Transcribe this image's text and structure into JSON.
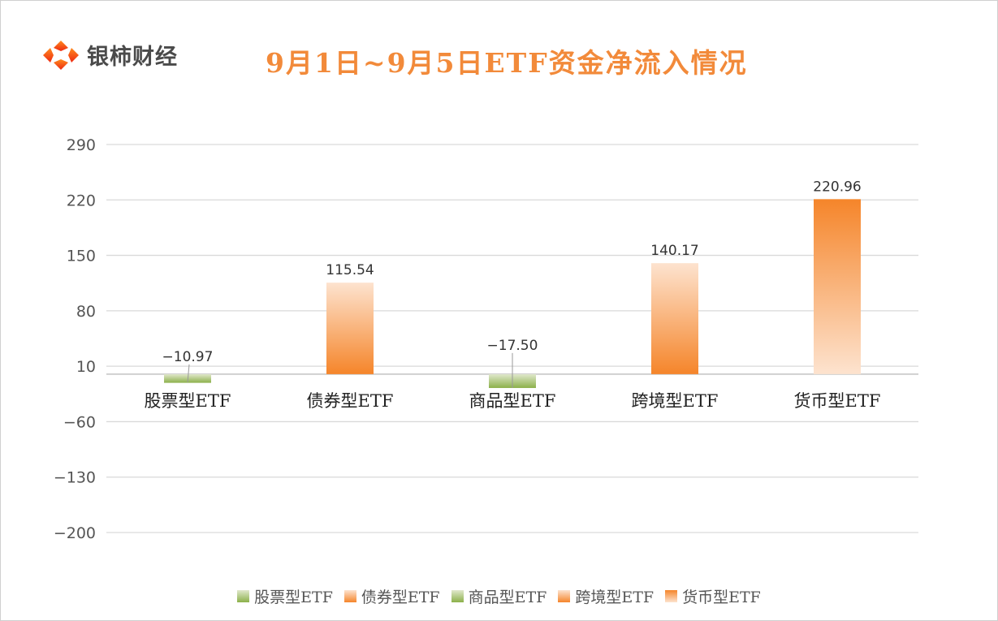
{
  "brand": {
    "name": "银柿财经"
  },
  "chart_data": {
    "type": "bar",
    "title": "9月1日~9月5日ETF资金净流入情况",
    "categories": [
      "股票型ETF",
      "债券型ETF",
      "商品型ETF",
      "跨境型ETF",
      "货币型ETF"
    ],
    "values": [
      -10.97,
      115.54,
      -17.5,
      140.17,
      220.96
    ],
    "labels": [
      "-10.97",
      "115.54",
      "-17.50",
      "140.17",
      "220.96"
    ],
    "yticks": [
      290,
      220,
      150,
      80,
      10,
      -60,
      -130,
      -200
    ],
    "ylim": [
      -200,
      290
    ],
    "grid": true,
    "legend_position": "bottom",
    "colors": {
      "green": "#8cb04a",
      "green_light": "#e0e8cc",
      "orange": "#f5852a",
      "orange_light": "#fde3cf"
    },
    "gradient_direction": [
      "down",
      "up",
      "down",
      "up",
      "down"
    ],
    "legend": [
      "股票型ETF",
      "债券型ETF",
      "商品型ETF",
      "跨境型ETF",
      "货币型ETF"
    ]
  }
}
